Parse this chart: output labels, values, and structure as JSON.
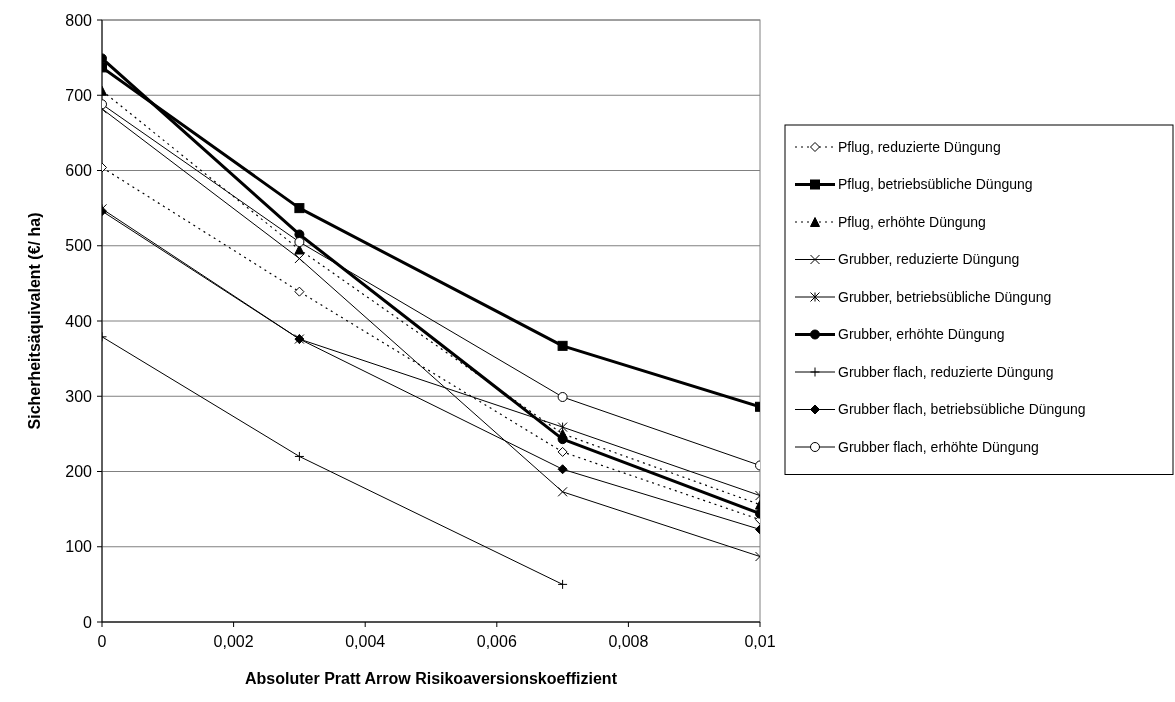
{
  "chart_data": {
    "type": "line",
    "xlabel": "Absoluter Pratt Arrow Risikoaversionskoeffizient",
    "ylabel": "Sicherheitsäquivalent (€/ ha)",
    "x": [
      0,
      0.003,
      0.007,
      0.01
    ],
    "xlim": [
      0,
      0.01
    ],
    "xticks": [
      0,
      {
        "value": 0.002,
        "label": "0,002"
      },
      {
        "value": 0.004,
        "label": "0,004"
      },
      {
        "value": 0.006,
        "label": "0,006"
      },
      {
        "value": 0.008,
        "label": "0,008"
      },
      {
        "value": 0.01,
        "label": "0,01"
      }
    ],
    "ylim": [
      0,
      800
    ],
    "yticks": [
      0,
      100,
      200,
      300,
      400,
      500,
      600,
      700,
      800
    ],
    "grid": "y",
    "legend": "right",
    "series": [
      {
        "name": "Pflug, reduzierte Düngung",
        "color": "#000000",
        "values": [
          604,
          439,
          226,
          136
        ],
        "marker": "diamond",
        "line_style": "dotted"
      },
      {
        "name": "Pflug, betriebsübliche Düngung",
        "color": "#000000",
        "values": [
          737,
          550,
          367,
          286
        ],
        "marker": "square",
        "line_style": "solid"
      },
      {
        "name": "Pflug, erhöhte Düngung",
        "color": "#000000",
        "values": [
          706,
          495,
          250,
          156
        ],
        "marker": "triangle",
        "line_style": "dotted"
      },
      {
        "name": "Grubber, reduzierte Düngung",
        "color": "#000000",
        "values": [
          682,
          483,
          173,
          87
        ],
        "marker": "cross",
        "line_style": "solid"
      },
      {
        "name": "Grubber, betriebsübliche Düngung",
        "color": "#000000",
        "values": [
          549,
          376,
          259,
          168
        ],
        "marker": "cross",
        "line_style": "solid"
      },
      {
        "name": "Grubber, erhöhte Düngung",
        "color": "#000000",
        "values": [
          749,
          515,
          243,
          144
        ],
        "marker": "circle",
        "line_style": "solid"
      },
      {
        "name": "Grubber flach, reduzierte Düngung",
        "color": "#000000",
        "values": [
          379,
          220,
          50,
          null
        ],
        "marker": "cross",
        "line_style": "solid"
      },
      {
        "name": "Grubber flach, betriebsübliche Düngung",
        "color": "#000000",
        "values": [
          546,
          376,
          203,
          123
        ],
        "marker": "diamond",
        "line_style": "solid"
      },
      {
        "name": "Grubber flach, erhöhte Düngung",
        "color": "#000000",
        "values": [
          688,
          505,
          299,
          208
        ],
        "marker": "circle",
        "line_style": "solid"
      }
    ]
  }
}
